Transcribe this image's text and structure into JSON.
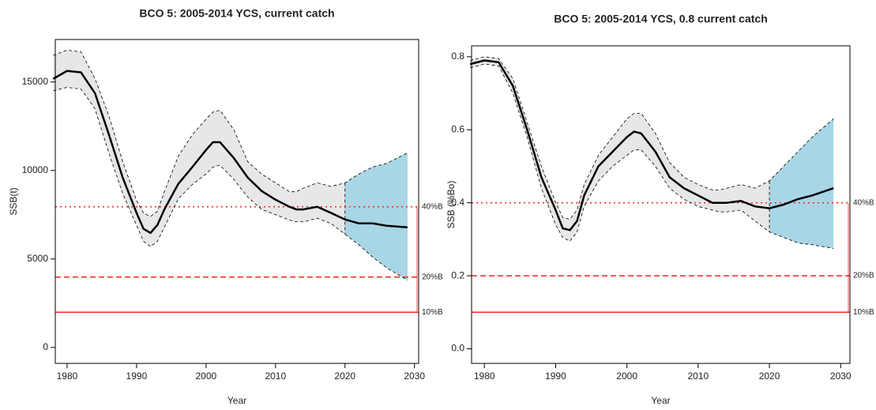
{
  "chart_data": [
    {
      "type": "band-line",
      "title": "BCO 5: 2005-2014 YCS, current catch",
      "x_label": "Year",
      "y_label": "SSB(t)",
      "x": [
        1978,
        1980,
        1982,
        1984,
        1986,
        1988,
        1990,
        1991,
        1992,
        1993,
        1994,
        1996,
        1998,
        2000,
        2001,
        2002,
        2004,
        2006,
        2008,
        2010,
        2012,
        2013,
        2014,
        2016,
        2018,
        2020,
        2022,
        2024,
        2026,
        2029
      ],
      "median": [
        15180,
        15625,
        15540,
        14375,
        12050,
        9600,
        7600,
        6700,
        6470,
        6920,
        7800,
        9240,
        10180,
        11160,
        11600,
        11600,
        10700,
        9600,
        8840,
        8350,
        7950,
        7800,
        7800,
        7950,
        7600,
        7230,
        7010,
        7010,
        6875,
        6790
      ],
      "lower": [
        14500,
        14700,
        14600,
        13500,
        11000,
        8700,
        6900,
        6000,
        5700,
        6000,
        6800,
        8400,
        9200,
        9800,
        10200,
        10300,
        9500,
        8500,
        7800,
        7500,
        7200,
        7100,
        7100,
        7300,
        7000,
        6400,
        5800,
        5100,
        4500,
        3800
      ],
      "upper": [
        16500,
        16800,
        16700,
        15200,
        13100,
        10500,
        8300,
        7600,
        7400,
        7700,
        8800,
        10800,
        12000,
        12900,
        13300,
        13400,
        12300,
        10500,
        9800,
        9300,
        8800,
        8800,
        9000,
        9300,
        9100,
        9300,
        9800,
        10200,
        10400,
        11000
      ],
      "projection_start": 2020,
      "history_color": "#e6e7e7",
      "projection_color": "#a8d6e5",
      "line_color": "#000000",
      "xlim": [
        1978.3,
        2030.6
      ],
      "ylim": [
        -900,
        17400
      ],
      "xticks": [
        1980,
        1990,
        2000,
        2010,
        2020,
        2030
      ],
      "yticks": [
        0,
        5000,
        10000,
        15000
      ],
      "ref_color": "#ff2020",
      "ref_lines": [
        {
          "value": 7950,
          "label": "40%B",
          "style": "dotted"
        },
        {
          "value": 3975,
          "label": "20%B",
          "style": "dashed"
        },
        {
          "value": 1988,
          "label": "10%B",
          "style": "solid"
        }
      ],
      "grid": false
    },
    {
      "type": "band-line",
      "title": "BCO 5: 2005-2014 YCS, 0.8 current catch",
      "x_label": "Year",
      "y_label": "SSB (%Bo)",
      "x": [
        1978,
        1980,
        1982,
        1984,
        1986,
        1988,
        1990,
        1991,
        1992,
        1993,
        1994,
        1996,
        1998,
        2000,
        2001,
        2002,
        2004,
        2006,
        2008,
        2010,
        2012,
        2013,
        2014,
        2016,
        2018,
        2020,
        2022,
        2024,
        2026,
        2029
      ],
      "median": [
        0.78,
        0.79,
        0.785,
        0.72,
        0.6,
        0.47,
        0.38,
        0.33,
        0.325,
        0.35,
        0.42,
        0.5,
        0.54,
        0.58,
        0.595,
        0.59,
        0.54,
        0.47,
        0.44,
        0.42,
        0.4,
        0.4,
        0.4,
        0.405,
        0.39,
        0.385,
        0.395,
        0.41,
        0.42,
        0.44
      ],
      "lower": [
        0.77,
        0.78,
        0.775,
        0.7,
        0.58,
        0.44,
        0.34,
        0.305,
        0.295,
        0.32,
        0.39,
        0.46,
        0.5,
        0.53,
        0.545,
        0.545,
        0.5,
        0.44,
        0.41,
        0.39,
        0.38,
        0.375,
        0.375,
        0.38,
        0.35,
        0.32,
        0.305,
        0.29,
        0.285,
        0.275
      ],
      "upper": [
        0.79,
        0.8,
        0.795,
        0.74,
        0.62,
        0.5,
        0.4,
        0.36,
        0.355,
        0.38,
        0.45,
        0.53,
        0.58,
        0.63,
        0.645,
        0.645,
        0.59,
        0.51,
        0.47,
        0.45,
        0.435,
        0.435,
        0.44,
        0.45,
        0.44,
        0.46,
        0.5,
        0.54,
        0.58,
        0.63
      ],
      "projection_start": 2020,
      "history_color": "#e6e7e7",
      "projection_color": "#a8d6e5",
      "line_color": "#000000",
      "xlim": [
        1978.2,
        2031.3
      ],
      "ylim": [
        -0.04,
        0.83
      ],
      "xticks": [
        1980,
        1990,
        2000,
        2010,
        2020,
        2030
      ],
      "yticks": [
        {
          "value": 0,
          "label": "0.0"
        },
        0.2,
        0.4,
        0.6,
        0.8
      ],
      "ref_color": "#ff2020",
      "ref_lines": [
        {
          "value": 0.4,
          "label": "40%B",
          "style": "dotted"
        },
        {
          "value": 0.2,
          "label": "20%B",
          "style": "dashed"
        },
        {
          "value": 0.1,
          "label": "10%B",
          "style": "solid"
        }
      ],
      "grid": false
    }
  ]
}
